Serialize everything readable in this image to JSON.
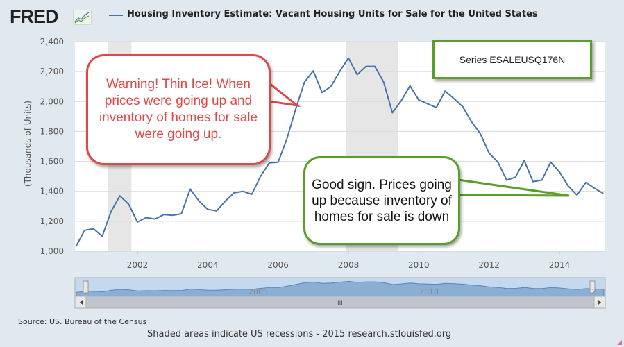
{
  "header": {
    "logo_text": "FRED",
    "logo_icon": "line-chart-icon",
    "title": "Housing Inventory Estimate: Vacant Housing Units for Sale for the United States"
  },
  "annotations": {
    "warning_callout": "Warning! Thin Ice! When prices were going up and inventory of homes for sale were going up.",
    "good_sign_callout": "Good sign. Prices going up because inventory of homes for sale is down",
    "series_label": "Series ESALEUSQ176N"
  },
  "navigator": {
    "labels": [
      "2005",
      "2010",
      "2..."
    ],
    "scroll_grip": "III"
  },
  "footer": {
    "source": "Source: US. Bureau of the Census",
    "note": "Shaded areas indicate US recessions - 2015 research.stlouisfed.org"
  },
  "colors": {
    "line": "#4572a7",
    "recession": "#e6e6e6",
    "warning": "#e04848",
    "good": "#5a9e2a",
    "background": "#e1e9f0"
  },
  "chart_data": {
    "type": "line",
    "title": "Housing Inventory Estimate: Vacant Housing Units for Sale for the United States",
    "xlabel": "",
    "ylabel": "(Thousands of Units)",
    "ylim": [
      1000,
      2400
    ],
    "xlim": [
      2000.25,
      2015.25
    ],
    "yticks": [
      1000,
      1200,
      1400,
      1600,
      1800,
      2000,
      2200,
      2400
    ],
    "ytick_labels": [
      "1,000",
      "1,200",
      "1,400",
      "1,600",
      "1,800",
      "2,000",
      "2,200",
      "2,400"
    ],
    "xticks": [
      2002,
      2004,
      2006,
      2008,
      2010,
      2012,
      2014
    ],
    "xtick_labels": [
      "2002",
      "2004",
      "2006",
      "2008",
      "2010",
      "2012",
      "2014"
    ],
    "grid": true,
    "frequency": "quarterly",
    "start": "2000-Q2",
    "recessions": [
      [
        2001.17,
        2001.83
      ],
      [
        2007.92,
        2009.42
      ]
    ],
    "series": [
      {
        "name": "ESALEUSQ176N",
        "values": [
          1032,
          1140,
          1150,
          1100,
          1265,
          1370,
          1315,
          1195,
          1225,
          1215,
          1245,
          1240,
          1250,
          1415,
          1335,
          1280,
          1270,
          1335,
          1390,
          1400,
          1380,
          1500,
          1590,
          1595,
          1750,
          1950,
          2130,
          2205,
          2060,
          2100,
          2200,
          2290,
          2180,
          2235,
          2235,
          2130,
          1925,
          2005,
          2105,
          2010,
          1985,
          1960,
          2070,
          2020,
          1965,
          1865,
          1785,
          1655,
          1595,
          1475,
          1495,
          1605,
          1465,
          1475,
          1595,
          1530,
          1435,
          1375,
          1460,
          1420,
          1385
        ]
      }
    ]
  }
}
